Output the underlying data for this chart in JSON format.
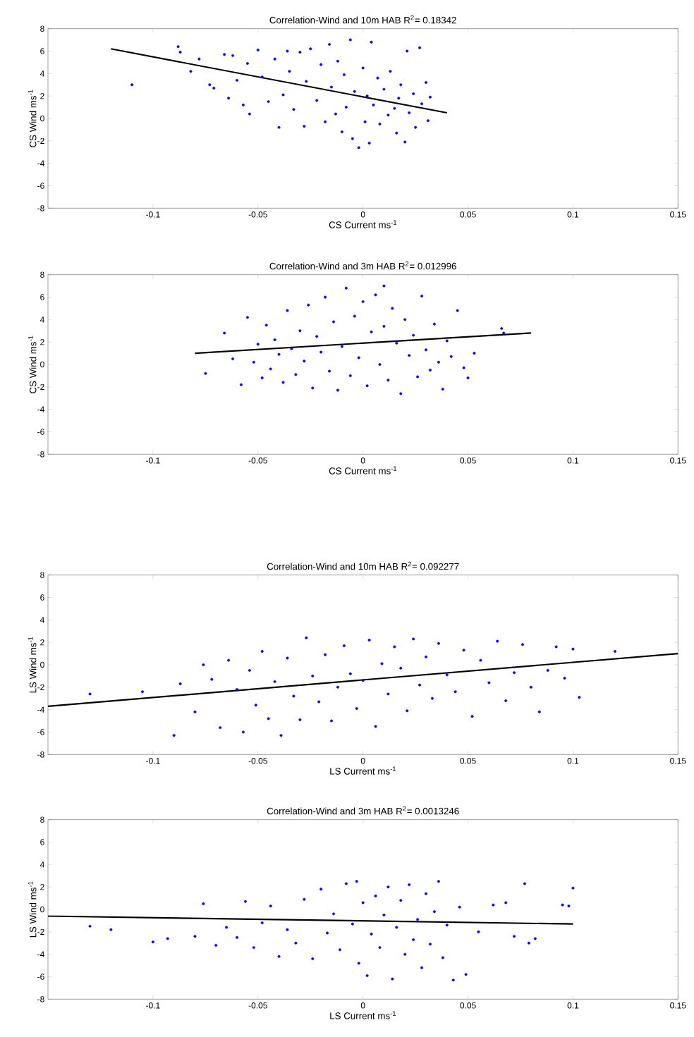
{
  "chart_data": [
    {
      "type": "scatter",
      "title": "Correlation-Wind and 10m HAB R$^{2}$= 0.18342",
      "xlabel": "CS Current ms$^{-1}$",
      "ylabel": "CS Wind ms$^{-1}$",
      "xlim": [
        -0.15,
        0.15
      ],
      "ylim": [
        -8,
        8
      ],
      "xticks": [
        -0.1,
        -0.05,
        0,
        0.05,
        0.1,
        0.15
      ],
      "yticks": [
        -8,
        -6,
        -4,
        -2,
        0,
        2,
        4,
        6,
        8
      ],
      "marker": "circle",
      "series": [
        {
          "color": "#0000ff",
          "x": [
            -0.11,
            -0.088,
            -0.087,
            -0.082,
            -0.078,
            -0.073,
            -0.071,
            -0.066,
            -0.064,
            -0.062,
            -0.06,
            -0.057,
            -0.055,
            -0.054,
            -0.05,
            -0.048,
            -0.045,
            -0.042,
            -0.04,
            -0.038,
            -0.036,
            -0.035,
            -0.033,
            -0.03,
            -0.028,
            -0.027,
            -0.025,
            -0.022,
            -0.02,
            -0.018,
            -0.016,
            -0.015,
            -0.013,
            -0.012,
            -0.01,
            -0.009,
            -0.008,
            -0.006,
            -0.005,
            -0.004,
            -0.002,
            0,
            0.001,
            0.002,
            0.003,
            0.004,
            0.005,
            0.007,
            0.008,
            0.01,
            0.012,
            0.013,
            0.015,
            0.016,
            0.017,
            0.018,
            0.02,
            0.021,
            0.022,
            0.024,
            0.025,
            0.027,
            0.028,
            0.03,
            0.031,
            0.032
          ],
          "values": [
            3.0,
            6.4,
            5.9,
            4.2,
            5.3,
            3.0,
            2.7,
            5.7,
            1.8,
            5.6,
            3.4,
            1.2,
            4.9,
            0.4,
            6.1,
            3.7,
            1.5,
            5.3,
            -0.8,
            2.1,
            6.0,
            4.2,
            0.8,
            5.9,
            -0.7,
            3.3,
            6.2,
            1.6,
            4.8,
            -0.3,
            6.6,
            2.8,
            0.4,
            5.1,
            -1.2,
            3.9,
            1.0,
            7.0,
            -1.8,
            2.4,
            -2.6,
            4.5,
            -0.3,
            2.0,
            -2.2,
            6.8,
            1.2,
            3.6,
            -0.5,
            2.6,
            0.3,
            4.2,
            0.9,
            -1.3,
            1.8,
            3.0,
            -2.1,
            6.0,
            0.5,
            2.2,
            -0.8,
            6.3,
            1.3,
            3.2,
            -0.2,
            1.9
          ]
        },
        {
          "type": "line",
          "color": "#000000",
          "marker": "none",
          "x": [
            -0.12,
            0.04
          ],
          "values": [
            6.2,
            0.5
          ]
        }
      ]
    },
    {
      "type": "scatter",
      "title": "Correlation-Wind and 3m HAB R$^{2}$= 0.012996",
      "xlabel": "CS Current ms$^{-1}$",
      "ylabel": "CS Wind ms$^{-1}$",
      "xlim": [
        -0.15,
        0.15
      ],
      "ylim": [
        -8,
        8
      ],
      "xticks": [
        -0.1,
        -0.05,
        0,
        0.05,
        0.1,
        0.15
      ],
      "yticks": [
        -8,
        -6,
        -4,
        -2,
        0,
        2,
        4,
        6,
        8
      ],
      "marker": "circle",
      "series": [
        {
          "color": "#0000ff",
          "x": [
            -0.075,
            -0.066,
            -0.062,
            -0.058,
            -0.055,
            -0.052,
            -0.05,
            -0.048,
            -0.046,
            -0.044,
            -0.042,
            -0.04,
            -0.038,
            -0.036,
            -0.034,
            -0.032,
            -0.03,
            -0.028,
            -0.026,
            -0.024,
            -0.022,
            -0.02,
            -0.018,
            -0.016,
            -0.014,
            -0.012,
            -0.01,
            -0.008,
            -0.006,
            -0.004,
            -0.002,
            0,
            0.002,
            0.004,
            0.006,
            0.008,
            0.01,
            0.012,
            0.014,
            0.016,
            0.018,
            0.02,
            0.022,
            0.024,
            0.026,
            0.028,
            0.03,
            0.032,
            0.034,
            0.036,
            0.038,
            0.04,
            0.042,
            0.045,
            0.048,
            0.05,
            0.053,
            0.066,
            0.067,
            0.01
          ],
          "values": [
            -0.8,
            2.8,
            0.5,
            -1.8,
            4.2,
            0.2,
            1.8,
            -1.2,
            3.5,
            -0.4,
            2.2,
            0.9,
            -1.6,
            4.8,
            1.4,
            -0.9,
            3.0,
            0.3,
            5.3,
            -2.1,
            2.5,
            1.1,
            6.0,
            -0.6,
            3.8,
            -2.3,
            1.6,
            6.8,
            -1.0,
            4.3,
            0.6,
            5.6,
            -1.9,
            2.9,
            6.2,
            0.0,
            3.4,
            -1.4,
            5.0,
            1.9,
            -2.6,
            4.0,
            0.8,
            2.6,
            -1.1,
            6.1,
            1.3,
            -0.5,
            3.6,
            0.2,
            -2.2,
            2.1,
            0.7,
            4.8,
            -0.3,
            -1.2,
            1.0,
            3.2,
            2.8,
            7.0
          ]
        },
        {
          "type": "line",
          "color": "#000000",
          "marker": "none",
          "x": [
            -0.08,
            0.08
          ],
          "values": [
            1.0,
            2.8
          ]
        }
      ]
    },
    {
      "type": "scatter",
      "title": "Correlation-Wind and 10m HAB R$^{2}$= 0.092277",
      "xlabel": "LS Current ms$^{-1}$",
      "ylabel": "LS Wind ms$^{-1}$",
      "xlim": [
        -0.15,
        0.15
      ],
      "ylim": [
        -8,
        8
      ],
      "xticks": [
        -0.1,
        -0.05,
        0,
        0.05,
        0.1,
        0.15
      ],
      "yticks": [
        -8,
        -6,
        -4,
        -2,
        0,
        2,
        4,
        6,
        8
      ],
      "marker": "circle",
      "series": [
        {
          "color": "#0000ff",
          "x": [
            -0.13,
            -0.105,
            -0.09,
            -0.087,
            -0.08,
            -0.076,
            -0.072,
            -0.068,
            -0.064,
            -0.06,
            -0.057,
            -0.054,
            -0.051,
            -0.048,
            -0.045,
            -0.042,
            -0.039,
            -0.036,
            -0.033,
            -0.03,
            -0.027,
            -0.024,
            -0.021,
            -0.018,
            -0.015,
            -0.012,
            -0.009,
            -0.006,
            -0.003,
            0,
            0.003,
            0.006,
            0.009,
            0.012,
            0.015,
            0.018,
            0.021,
            0.024,
            0.027,
            0.03,
            0.033,
            0.036,
            0.04,
            0.044,
            0.048,
            0.052,
            0.056,
            0.06,
            0.064,
            0.068,
            0.072,
            0.076,
            0.08,
            0.084,
            0.088,
            0.092,
            0.096,
            0.1,
            0.103,
            0.12
          ],
          "values": [
            -2.6,
            -2.4,
            -6.3,
            -1.7,
            -4.2,
            0.0,
            -1.3,
            -5.6,
            0.4,
            -2.2,
            -6.0,
            -0.5,
            -3.6,
            1.2,
            -4.8,
            -1.5,
            -6.3,
            0.6,
            -2.8,
            -4.9,
            2.4,
            -1.0,
            -3.3,
            0.9,
            -5.0,
            -2.0,
            1.7,
            -0.8,
            -3.9,
            -1.4,
            2.2,
            -5.5,
            0.1,
            -2.6,
            1.6,
            -0.3,
            -4.1,
            2.3,
            -1.8,
            0.7,
            -3.0,
            1.9,
            -0.9,
            -2.4,
            1.3,
            -4.6,
            0.4,
            -1.6,
            2.1,
            -3.2,
            -0.7,
            1.8,
            -2.0,
            -4.2,
            -0.5,
            1.6,
            -1.2,
            1.4,
            -2.9,
            1.2
          ]
        },
        {
          "type": "line",
          "color": "#000000",
          "marker": "none",
          "x": [
            -0.15,
            0.15
          ],
          "values": [
            -3.7,
            1.0
          ]
        }
      ]
    },
    {
      "type": "scatter",
      "title": "Correlation-Wind and 3m HAB R$^{2}$= 0.0013246",
      "xlabel": "LS Current ms$^{-1}$",
      "ylabel": "LS Wind ms$^{-1}$",
      "xlim": [
        -0.15,
        0.15
      ],
      "ylim": [
        -8,
        8
      ],
      "xticks": [
        -0.1,
        -0.05,
        0,
        0.05,
        0.1,
        0.15
      ],
      "yticks": [
        -8,
        -6,
        -4,
        -2,
        0,
        2,
        4,
        6,
        8
      ],
      "marker": "circle",
      "series": [
        {
          "color": "#0000ff",
          "x": [
            -0.13,
            -0.12,
            -0.1,
            -0.093,
            -0.08,
            -0.076,
            -0.07,
            -0.065,
            -0.06,
            -0.056,
            -0.052,
            -0.048,
            -0.044,
            -0.04,
            -0.036,
            -0.032,
            -0.028,
            -0.024,
            -0.02,
            -0.017,
            -0.014,
            -0.011,
            -0.008,
            -0.005,
            -0.002,
            0,
            0.002,
            0.004,
            0.006,
            0.008,
            0.01,
            0.012,
            0.014,
            0.016,
            0.018,
            0.02,
            0.022,
            0.024,
            0.026,
            0.028,
            0.03,
            0.032,
            0.034,
            0.036,
            0.038,
            0.04,
            0.043,
            0.046,
            0.049,
            0.055,
            0.062,
            0.068,
            0.072,
            0.077,
            0.079,
            0.082,
            0.095,
            0.098,
            0.1,
            -0.003
          ],
          "values": [
            -1.5,
            -1.8,
            -2.9,
            -2.6,
            -2.4,
            0.5,
            -3.2,
            -1.6,
            -2.5,
            0.7,
            -3.4,
            -1.2,
            0.3,
            -4.2,
            -1.8,
            -3.0,
            0.9,
            -4.4,
            1.8,
            -2.1,
            -0.4,
            -3.6,
            2.3,
            -1.3,
            -4.8,
            0.6,
            -5.9,
            -2.2,
            1.2,
            -3.4,
            -0.5,
            2.0,
            -6.2,
            -1.6,
            0.8,
            -4.0,
            2.2,
            -2.7,
            -0.9,
            -5.2,
            1.4,
            -3.1,
            -0.2,
            2.5,
            -4.3,
            -1.4,
            -6.3,
            0.2,
            -5.8,
            -2.0,
            0.4,
            0.6,
            -2.4,
            2.3,
            -3.0,
            -2.6,
            0.4,
            0.3,
            1.9,
            2.5
          ]
        },
        {
          "type": "line",
          "color": "#000000",
          "marker": "none",
          "x": [
            -0.15,
            0.1
          ],
          "values": [
            -0.6,
            -1.3
          ]
        }
      ]
    }
  ]
}
